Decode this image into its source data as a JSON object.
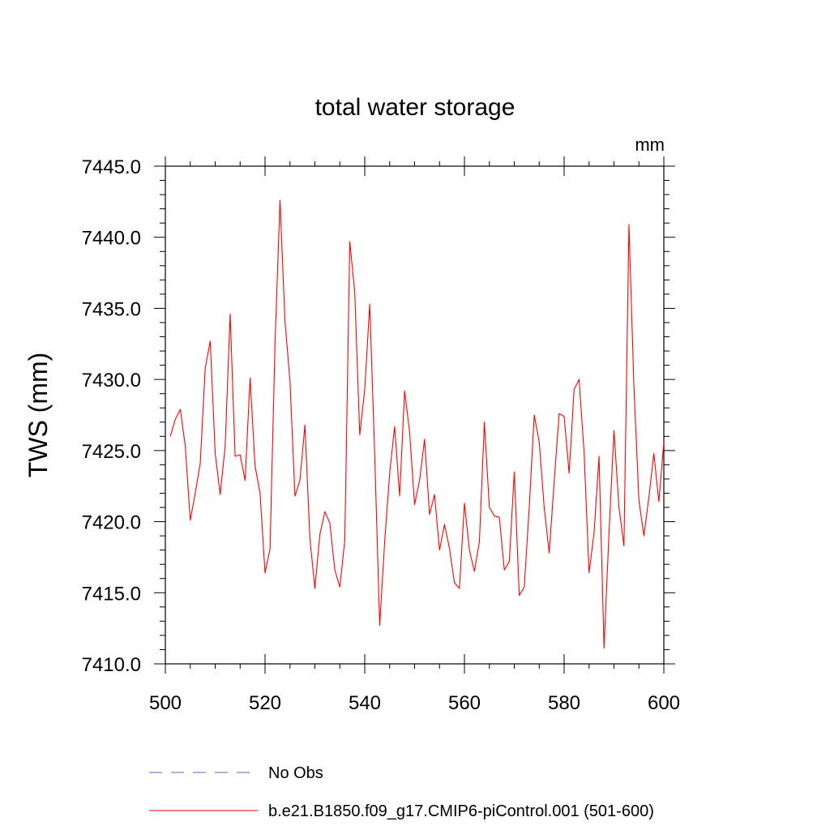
{
  "chart_data": {
    "type": "line",
    "title": "total water storage",
    "units_label": "mm",
    "xlabel": "",
    "ylabel": "TWS  (mm)",
    "xlim": [
      500,
      600
    ],
    "ylim": [
      7410,
      7445
    ],
    "x_ticks": [
      500,
      520,
      540,
      560,
      580,
      600
    ],
    "x_tick_labels": [
      "500",
      "520",
      "540",
      "560",
      "580",
      "600"
    ],
    "y_ticks": [
      7410,
      7415,
      7420,
      7425,
      7430,
      7435,
      7440,
      7445
    ],
    "y_tick_labels": [
      "7410.0",
      "7415.0",
      "7420.0",
      "7425.0",
      "7430.0",
      "7435.0",
      "7440.0",
      "7445.0"
    ],
    "grid": false,
    "legend_position": "bottom",
    "legend": [
      {
        "label": "No Obs",
        "color": "#6a5acd",
        "style": "dashed"
      },
      {
        "label": "b.e21.B1850.f09_g17.CMIP6-piControl.001 (501-600)",
        "color": "#ff0000",
        "style": "solid"
      }
    ],
    "series": [
      {
        "name": "b.e21.B1850.f09_g17.CMIP6-piControl.001 (501-600)",
        "color": "#ff0000",
        "x": [
          501,
          502,
          503,
          504,
          505,
          506,
          507,
          508,
          509,
          510,
          511,
          512,
          513,
          514,
          515,
          516,
          517,
          518,
          519,
          520,
          521,
          522,
          523,
          524,
          525,
          526,
          527,
          528,
          529,
          530,
          531,
          532,
          533,
          534,
          535,
          536,
          537,
          538,
          539,
          540,
          541,
          542,
          543,
          544,
          545,
          546,
          547,
          548,
          549,
          550,
          551,
          552,
          553,
          554,
          555,
          556,
          557,
          558,
          559,
          560,
          561,
          562,
          563,
          564,
          565,
          566,
          567,
          568,
          569,
          570,
          571,
          572,
          573,
          574,
          575,
          576,
          577,
          578,
          579,
          580,
          581,
          582,
          583,
          584,
          585,
          586,
          587,
          588,
          589,
          590,
          591,
          592,
          593,
          594,
          595,
          596,
          597,
          598,
          599,
          600
        ],
        "values": [
          7426.0,
          7427.2,
          7427.9,
          7425.3,
          7420.1,
          7422.0,
          7424.1,
          7430.8,
          7432.7,
          7424.8,
          7421.9,
          7425.3,
          7434.6,
          7424.6,
          7424.7,
          7422.9,
          7430.1,
          7423.9,
          7422.0,
          7416.4,
          7418.1,
          7432.5,
          7442.6,
          7434.1,
          7429.9,
          7421.8,
          7422.9,
          7426.8,
          7418.8,
          7415.3,
          7419.1,
          7420.7,
          7419.9,
          7416.6,
          7415.4,
          7418.7,
          7439.7,
          7436.1,
          7426.1,
          7429.3,
          7435.3,
          7424.7,
          7412.7,
          7418.6,
          7423.4,
          7426.7,
          7421.8,
          7429.2,
          7426.3,
          7421.2,
          7422.9,
          7425.8,
          7420.5,
          7421.9,
          7418.0,
          7419.8,
          7418.1,
          7415.7,
          7415.3,
          7421.3,
          7418.0,
          7416.5,
          7418.6,
          7427.0,
          7421.0,
          7420.4,
          7420.3,
          7416.6,
          7417.2,
          7423.5,
          7414.8,
          7415.4,
          7421.0,
          7427.5,
          7425.6,
          7421.0,
          7417.8,
          7422.8,
          7427.6,
          7427.4,
          7423.4,
          7429.3,
          7430.0,
          7424.9,
          7416.4,
          7419.2,
          7424.6,
          7411.1,
          7419.2,
          7426.4,
          7421.0,
          7418.3,
          7440.9,
          7429.5,
          7421.5,
          7419.0,
          7421.7,
          7424.8,
          7421.4,
          7425.6
        ]
      }
    ]
  }
}
